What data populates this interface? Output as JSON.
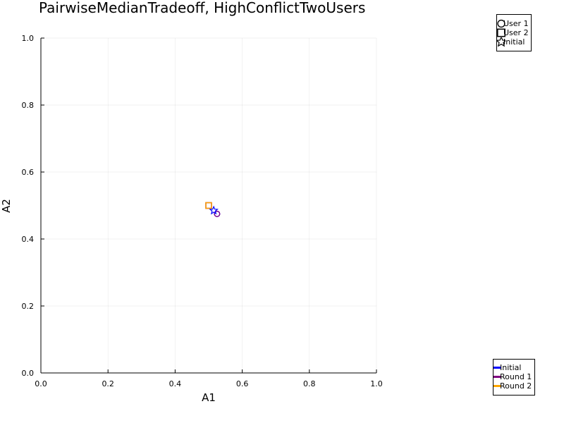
{
  "chart_data": {
    "type": "scatter",
    "title": "PairwiseMedianTradeoff, HighConflictTwoUsers",
    "xlabel": "A1",
    "ylabel": "A2",
    "xlim": [
      0,
      1
    ],
    "ylim": [
      0,
      1
    ],
    "xticks": [
      "0.0",
      "0.2",
      "0.4",
      "0.6",
      "0.8",
      "1.0"
    ],
    "yticks": [
      "0.0",
      "0.2",
      "0.4",
      "0.6",
      "0.8",
      "1.0"
    ],
    "grid": true,
    "legend_markers": {
      "placement": "top-right",
      "entries": [
        {
          "name": "User 1",
          "marker": "circle"
        },
        {
          "name": "User 2",
          "marker": "square"
        },
        {
          "name": "Initial",
          "marker": "star"
        }
      ]
    },
    "legend_rounds": {
      "placement": "bottom-right",
      "entries": [
        {
          "name": "Initial",
          "color": "#0000ff"
        },
        {
          "name": "Round 1",
          "color": "#800080"
        },
        {
          "name": "Round 2",
          "color": "#ffa500"
        }
      ]
    },
    "points": [
      {
        "round": "Round 1",
        "marker": "square",
        "x": 0.5,
        "y": 0.5,
        "color": "#800080"
      },
      {
        "round": "Round 2",
        "marker": "square",
        "x": 0.5,
        "y": 0.5,
        "color": "#ffa500"
      },
      {
        "round": "Initial",
        "marker": "circle",
        "x": 0.525,
        "y": 0.475,
        "color": "#0000ff"
      },
      {
        "round": "Round 1",
        "marker": "circle",
        "x": 0.525,
        "y": 0.475,
        "color": "#800080"
      },
      {
        "round": "Initial",
        "marker": "star",
        "x": 0.515,
        "y": 0.485,
        "color": "#0000ff"
      }
    ]
  }
}
